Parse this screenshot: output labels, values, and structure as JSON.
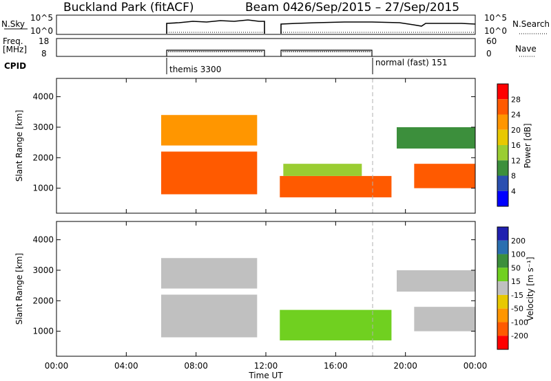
{
  "header": {
    "station": "Buckland Park (fitACF)",
    "beam": "Beam 04",
    "date_range": "26/Sep/2015 – 27/Sep/2015"
  },
  "nsky_panel": {
    "left_label": "N.Sky",
    "left_ticks": [
      "10^5",
      "10^0"
    ],
    "right_ticks": [
      "10^5",
      "10^0"
    ],
    "right_label": "N.Search"
  },
  "freq_panel": {
    "left_label_1": "Freq.",
    "left_label_2": "[MHz]",
    "left_ticks": [
      "18",
      "8"
    ],
    "right_ticks": [
      "60",
      "0"
    ],
    "right_label": "Nave"
  },
  "cpid": {
    "label": "CPID",
    "modes": [
      {
        "name": "themis 3300",
        "start_hour": 6
      },
      {
        "name": "normal (fast) 151",
        "start_hour": 18
      }
    ]
  },
  "chart_data": [
    {
      "type": "heatmap",
      "panel": "power",
      "ylabel": "Slant Range [km]",
      "y_ticks": [
        1000,
        2000,
        3000,
        4000
      ],
      "ylim": [
        180,
        4600
      ],
      "xlim_hours": [
        0,
        24
      ],
      "colorbar": {
        "label": "Power [dB]",
        "ticks": [
          "28",
          "24",
          "20",
          "16",
          "12",
          "8",
          "4"
        ],
        "colors": [
          "#ff0000",
          "#ff5a00",
          "#ff9600",
          "#e8c800",
          "#9acd32",
          "#3c8f3c",
          "#2a4fb0",
          "#0000ff"
        ]
      },
      "regions": [
        {
          "t0": 6.0,
          "t1": 11.5,
          "r0": 2400,
          "r1": 3400,
          "value": 22
        },
        {
          "t0": 6.0,
          "t1": 11.5,
          "r0": 800,
          "r1": 2200,
          "value": 24
        },
        {
          "t0": 12.8,
          "t1": 19.2,
          "r0": 700,
          "r1": 1400,
          "value": 27
        },
        {
          "t0": 13.0,
          "t1": 17.5,
          "r0": 1400,
          "r1": 1800,
          "value": 15
        },
        {
          "t0": 20.5,
          "t1": 24.0,
          "r0": 1000,
          "r1": 1800,
          "value": 26
        },
        {
          "t0": 19.5,
          "t1": 24.0,
          "r0": 2300,
          "r1": 3000,
          "value": 10
        }
      ]
    },
    {
      "type": "heatmap",
      "panel": "velocity",
      "ylabel": "Slant Range [km]",
      "y_ticks": [
        1000,
        2000,
        3000,
        4000
      ],
      "ylim": [
        180,
        4600
      ],
      "xlim_hours": [
        0,
        24
      ],
      "colorbar": {
        "label": "Velocity [m s⁻¹]",
        "ticks": [
          "200",
          "100",
          "50",
          "15",
          "-15",
          "-50",
          "-100",
          "-200"
        ],
        "colors": [
          "#2020b0",
          "#2a6fb0",
          "#3c8f3c",
          "#70d020",
          "#c0c0c0",
          "#e8c800",
          "#ff9600",
          "#ff5a00",
          "#ff0000"
        ]
      },
      "regions": [
        {
          "t0": 6.0,
          "t1": 11.5,
          "r0": 2400,
          "r1": 3400,
          "value": -15
        },
        {
          "t0": 6.0,
          "t1": 11.5,
          "r0": 800,
          "r1": 2200,
          "value": 0
        },
        {
          "t0": 12.8,
          "t1": 19.2,
          "r0": 700,
          "r1": 1700,
          "value": 40
        },
        {
          "t0": 20.5,
          "t1": 24.0,
          "r0": 1000,
          "r1": 1800,
          "value": 0
        },
        {
          "t0": 19.5,
          "t1": 24.0,
          "r0": 2300,
          "r1": 3000,
          "value": 5
        }
      ]
    }
  ],
  "x_axis": {
    "tick_labels": [
      "00:00",
      "04:00",
      "08:00",
      "12:00",
      "16:00",
      "20:00",
      "00:00"
    ],
    "tick_hours": [
      0,
      4,
      8,
      12,
      16,
      20,
      24
    ],
    "label": "Time UT"
  },
  "colors": {
    "axis": "#000000",
    "background": "#ffffff",
    "marker_dash": "#b0b0b0"
  }
}
